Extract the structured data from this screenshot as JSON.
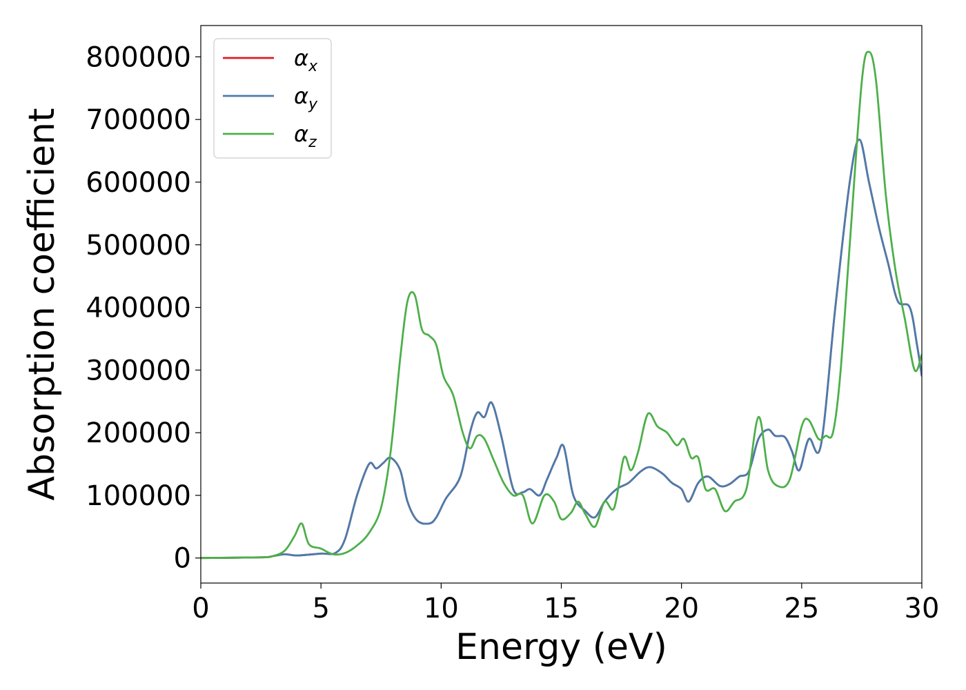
{
  "chart_data": {
    "type": "line",
    "xlabel": "Energy (eV)",
    "ylabel": "Absorption coefficient",
    "xlim": [
      0,
      30
    ],
    "ylim": [
      -40000,
      850000
    ],
    "xticks": [
      0,
      5,
      10,
      15,
      20,
      25,
      30
    ],
    "yticks": [
      0,
      100000,
      200000,
      300000,
      400000,
      500000,
      600000,
      700000,
      800000
    ],
    "grid": false,
    "legend_position": "top-left",
    "series": [
      {
        "name": "α",
        "subscript": "x",
        "color": "#e41a1c",
        "x": [
          0,
          2.5,
          3.0,
          3.5,
          4.0,
          5.0,
          5.6,
          6.0,
          6.5,
          7.0,
          7.3,
          7.6,
          7.9,
          8.3,
          8.6,
          9.0,
          9.5,
          9.8,
          10.2,
          10.8,
          11.2,
          11.5,
          11.8,
          12.1,
          12.5,
          13.0,
          13.4,
          13.7,
          14.1,
          14.4,
          14.8,
          15.1,
          15.5,
          16.0,
          16.4,
          16.8,
          17.3,
          17.8,
          18.3,
          18.7,
          19.2,
          19.6,
          20.0,
          20.3,
          20.7,
          21.1,
          21.6,
          22.0,
          22.4,
          22.8,
          23.2,
          23.6,
          23.9,
          24.3,
          24.6,
          24.9,
          25.3,
          25.8,
          26.4,
          27.0,
          27.4,
          27.8,
          28.2,
          28.6,
          29.0,
          29.5,
          29.8,
          30.0
        ],
        "y": [
          0,
          1000,
          3000,
          6000,
          4000,
          7000,
          8000,
          30000,
          100000,
          150000,
          143000,
          152000,
          160000,
          140000,
          90000,
          60000,
          55000,
          65000,
          95000,
          130000,
          200000,
          232000,
          225000,
          248000,
          195000,
          110000,
          105000,
          110000,
          100000,
          125000,
          160000,
          178000,
          100000,
          75000,
          65000,
          90000,
          110000,
          120000,
          138000,
          145000,
          135000,
          120000,
          110000,
          90000,
          120000,
          130000,
          115000,
          118000,
          130000,
          138000,
          190000,
          205000,
          195000,
          193000,
          170000,
          140000,
          190000,
          180000,
          400000,
          600000,
          668000,
          600000,
          530000,
          470000,
          410000,
          400000,
          340000,
          290000
        ]
      },
      {
        "name": "α",
        "subscript": "y",
        "color": "#4a7cad",
        "x": [
          0,
          2.5,
          3.0,
          3.5,
          4.0,
          5.0,
          5.6,
          6.0,
          6.5,
          7.0,
          7.3,
          7.6,
          7.9,
          8.3,
          8.6,
          9.0,
          9.5,
          9.8,
          10.2,
          10.8,
          11.2,
          11.5,
          11.8,
          12.1,
          12.5,
          13.0,
          13.4,
          13.7,
          14.1,
          14.4,
          14.8,
          15.1,
          15.5,
          16.0,
          16.4,
          16.8,
          17.3,
          17.8,
          18.3,
          18.7,
          19.2,
          19.6,
          20.0,
          20.3,
          20.7,
          21.1,
          21.6,
          22.0,
          22.4,
          22.8,
          23.2,
          23.6,
          23.9,
          24.3,
          24.6,
          24.9,
          25.3,
          25.8,
          26.4,
          27.0,
          27.4,
          27.8,
          28.2,
          28.6,
          29.0,
          29.5,
          29.8,
          30.0
        ],
        "y": [
          0,
          1000,
          3000,
          6000,
          4000,
          7000,
          8000,
          30000,
          100000,
          150000,
          143000,
          152000,
          160000,
          140000,
          90000,
          60000,
          55000,
          65000,
          95000,
          130000,
          200000,
          232000,
          225000,
          248000,
          195000,
          110000,
          105000,
          110000,
          100000,
          125000,
          160000,
          178000,
          100000,
          75000,
          65000,
          90000,
          110000,
          120000,
          138000,
          145000,
          135000,
          120000,
          110000,
          90000,
          120000,
          130000,
          115000,
          118000,
          130000,
          138000,
          190000,
          205000,
          195000,
          193000,
          170000,
          140000,
          190000,
          180000,
          400000,
          600000,
          668000,
          600000,
          530000,
          470000,
          410000,
          400000,
          340000,
          290000
        ]
      },
      {
        "name": "α",
        "subscript": "z",
        "color": "#4daf4a",
        "x": [
          0,
          2.5,
          3.0,
          3.5,
          3.9,
          4.2,
          4.5,
          5.0,
          5.5,
          6.0,
          6.5,
          7.0,
          7.5,
          7.9,
          8.3,
          8.6,
          8.9,
          9.2,
          9.5,
          9.8,
          10.1,
          10.5,
          10.9,
          11.2,
          11.5,
          11.8,
          12.2,
          12.6,
          13.0,
          13.4,
          13.8,
          14.3,
          14.7,
          15.0,
          15.4,
          15.7,
          16.0,
          16.4,
          16.8,
          17.2,
          17.6,
          17.9,
          18.2,
          18.6,
          19.0,
          19.4,
          19.8,
          20.1,
          20.4,
          20.7,
          21.0,
          21.4,
          21.8,
          22.2,
          22.7,
          23.2,
          23.6,
          24.0,
          24.5,
          25.0,
          25.3,
          25.7,
          26.0,
          26.3,
          26.6,
          27.0,
          27.5,
          27.8,
          28.1,
          28.5,
          28.9,
          29.3,
          29.7,
          30.0
        ],
        "y": [
          0,
          1000,
          3000,
          12000,
          35000,
          55000,
          22000,
          15000,
          6000,
          8000,
          20000,
          40000,
          80000,
          170000,
          320000,
          410000,
          420000,
          365000,
          355000,
          340000,
          290000,
          260000,
          200000,
          175000,
          195000,
          190000,
          155000,
          120000,
          100000,
          100000,
          55000,
          100000,
          90000,
          62000,
          72000,
          90000,
          70000,
          50000,
          90000,
          80000,
          160000,
          140000,
          170000,
          230000,
          210000,
          200000,
          180000,
          190000,
          160000,
          160000,
          110000,
          110000,
          75000,
          90000,
          110000,
          225000,
          140000,
          115000,
          125000,
          210000,
          220000,
          190000,
          195000,
          200000,
          290000,
          500000,
          760000,
          808000,
          760000,
          580000,
          460000,
          380000,
          300000,
          325000
        ]
      }
    ]
  }
}
